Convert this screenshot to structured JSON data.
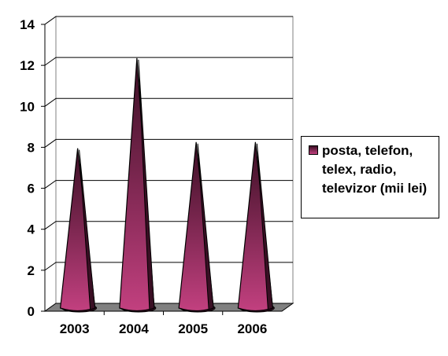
{
  "chart_data": {
    "type": "bar",
    "shape": "3d-cone",
    "categories": [
      "2003",
      "2004",
      "2005",
      "2006"
    ],
    "series": [
      {
        "name": "posta, telefon, telex, radio, televizor (mii lei)",
        "values": [
          7.8,
          12.2,
          8.1,
          8.1
        ]
      }
    ],
    "ylim": [
      0,
      14
    ],
    "yticks": [
      0,
      2,
      4,
      6,
      8,
      10,
      12,
      14
    ],
    "grid": true,
    "legend_position": "right",
    "colors": {
      "cone_light": "#c2407f",
      "cone_dark": "#3a0f24",
      "grid": "#000000",
      "floor": "#808080"
    }
  }
}
